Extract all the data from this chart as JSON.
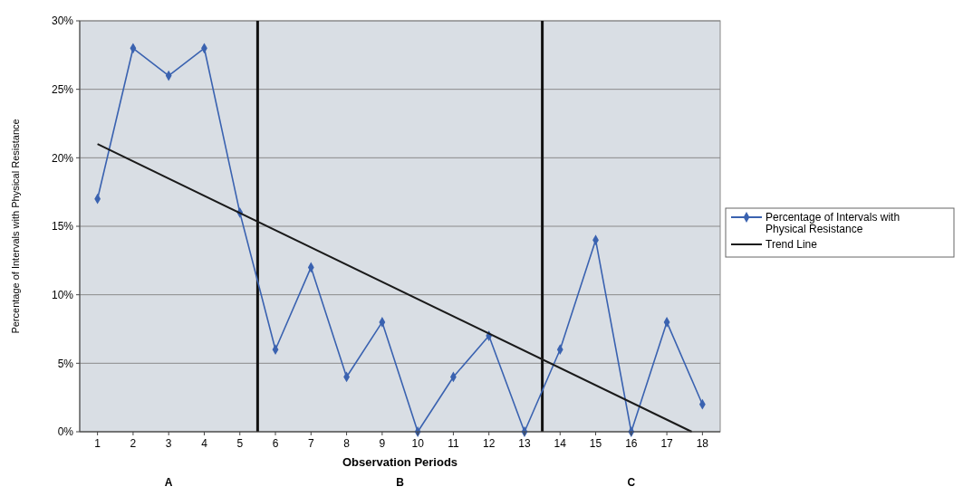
{
  "chart_data": {
    "type": "line",
    "xlabel": "Observation Periods",
    "ylabel": "Percentage of Intervals with Physical Resistance",
    "x": [
      1,
      2,
      3,
      4,
      5,
      6,
      7,
      8,
      9,
      10,
      11,
      12,
      13,
      14,
      15,
      16,
      17,
      18
    ],
    "xlim": [
      0.5,
      18.5
    ],
    "xticks": [
      1,
      2,
      3,
      4,
      5,
      6,
      7,
      8,
      9,
      10,
      11,
      12,
      13,
      14,
      15,
      16,
      17,
      18
    ],
    "ylim": [
      0,
      30
    ],
    "yticks": [
      {
        "value": 0,
        "label": "0%"
      },
      {
        "value": 5,
        "label": "5%"
      },
      {
        "value": 10,
        "label": "10%"
      },
      {
        "value": 15,
        "label": "15%"
      },
      {
        "value": 20,
        "label": "20%"
      },
      {
        "value": 25,
        "label": "25%"
      },
      {
        "value": 30,
        "label": "30%"
      }
    ],
    "series": [
      {
        "name": "Percentage of Intervals with Physical Resistance",
        "color": "#3a62b0",
        "marker": "diamond",
        "values": [
          17,
          28,
          26,
          28,
          16,
          6,
          12,
          4,
          8,
          0,
          4,
          7,
          0,
          6,
          14,
          0,
          8,
          2
        ]
      },
      {
        "name": "Trend Line",
        "type": "line",
        "color": "#1a1a1a",
        "marker": "none",
        "x": [
          1,
          17.7
        ],
        "values": [
          21,
          0
        ]
      }
    ],
    "ref_lines": [
      {
        "axis": "x",
        "value": 5.5,
        "color": "#111111"
      },
      {
        "axis": "x",
        "value": 13.5,
        "color": "#111111"
      }
    ],
    "annotations": [
      "A",
      "B",
      "C"
    ],
    "grid": "y",
    "legend": "right"
  }
}
